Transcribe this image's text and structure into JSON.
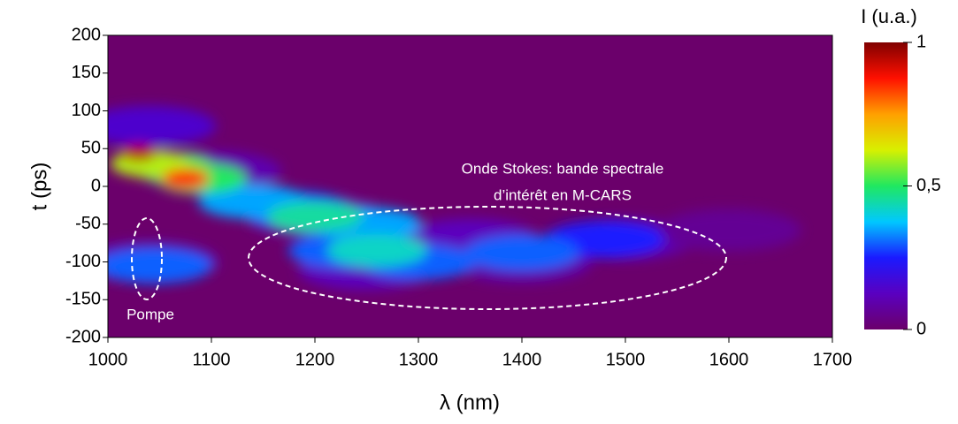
{
  "chart_data": {
    "type": "heatmap",
    "xlabel": "λ (nm)",
    "ylabel": "t (ps)",
    "xlim": [
      1000,
      1700
    ],
    "xticks": [
      1000,
      1100,
      1200,
      1300,
      1400,
      1500,
      1600,
      1700
    ],
    "ylim": [
      -200,
      200
    ],
    "yticks": [
      200,
      150,
      100,
      50,
      0,
      -50,
      -100,
      -150,
      -200
    ],
    "background": "#6b006b",
    "colormap": [
      "#6b006b",
      "#5a00c0",
      "#1a1aff",
      "#00c8ff",
      "#20e860",
      "#d8f000",
      "#ffa000",
      "#ff1000",
      "#800000"
    ],
    "x": [
      1100,
      1200,
      1350,
      1500,
      1600,
      1250,
      1400,
      1040,
      1040,
      1480,
      1180,
      1230,
      1300,
      1400,
      1045,
      1250,
      1140,
      1200,
      1260,
      1090,
      1060,
      1040,
      1075,
      1030
    ],
    "y": [
      20,
      -40,
      -70,
      -70,
      -58,
      -110,
      -100,
      80,
      -100,
      -70,
      -30,
      -85,
      -100,
      -88,
      -105,
      -50,
      -20,
      -40,
      -85,
      10,
      25,
      30,
      10,
      45
    ],
    "values": [
      0.1,
      0.12,
      0.12,
      0.1,
      0.06,
      0.12,
      0.1,
      0.15,
      0.12,
      0.25,
      0.3,
      0.3,
      0.3,
      0.3,
      0.3,
      0.35,
      0.35,
      0.45,
      0.42,
      0.5,
      0.55,
      0.6,
      0.85,
      0.95
    ],
    "colorbar": {
      "label": "I (u.a.)",
      "lim": [
        0,
        1
      ],
      "ticks": [
        0,
        {
          "value": 0.5,
          "label": "0,5"
        },
        1
      ]
    },
    "annotations": [
      "Onde Stokes: bande spectrale",
      "d’intérêt en M-CARS",
      "Pompe"
    ]
  }
}
